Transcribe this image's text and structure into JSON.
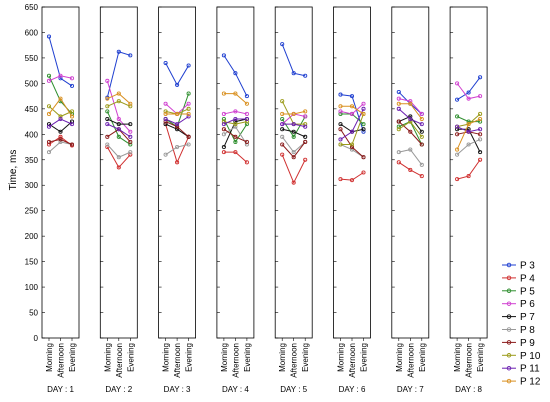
{
  "chart_data": {
    "type": "line",
    "ylabel": "Time, ms",
    "ylim": [
      0,
      650
    ],
    "yticks": [
      0,
      50,
      100,
      150,
      200,
      250,
      300,
      350,
      400,
      450,
      500,
      550,
      600,
      650
    ],
    "x": [
      "Morning",
      "Afternoon",
      "Evening"
    ],
    "panels": [
      "DAY : 1",
      "DAY : 2",
      "DAY : 3",
      "DAY : 4",
      "DAY : 5",
      "DAY : 6",
      "DAY : 7",
      "DAY : 8"
    ],
    "legend_position": "right",
    "grid": false,
    "series": [
      {
        "name": "P 3",
        "color": "#1f3fd0",
        "days": [
          [
            592,
            510,
            495
          ],
          [
            472,
            562,
            555
          ],
          [
            540,
            497,
            535
          ],
          [
            555,
            520,
            475
          ],
          [
            577,
            520,
            515
          ],
          [
            478,
            475,
            405
          ],
          [
            483,
            460,
            440
          ],
          [
            468,
            482,
            512
          ]
        ]
      },
      {
        "name": "P 4",
        "color": "#d03030",
        "days": [
          [
            380,
            395,
            378
          ],
          [
            375,
            335,
            360
          ],
          [
            420,
            345,
            395
          ],
          [
            365,
            365,
            345
          ],
          [
            360,
            305,
            350
          ],
          [
            312,
            310,
            325
          ],
          [
            345,
            330,
            318
          ],
          [
            312,
            318,
            350
          ]
        ]
      },
      {
        "name": "P 5",
        "color": "#2f8f2f",
        "days": [
          [
            515,
            465,
            440
          ],
          [
            445,
            395,
            380
          ],
          [
            430,
            415,
            480
          ],
          [
            430,
            385,
            420
          ],
          [
            430,
            395,
            435
          ],
          [
            440,
            440,
            420
          ],
          [
            415,
            425,
            380
          ],
          [
            435,
            425,
            425
          ]
        ]
      },
      {
        "name": "P 6",
        "color": "#d040d0",
        "days": [
          [
            505,
            515,
            510
          ],
          [
            505,
            430,
            405
          ],
          [
            460,
            440,
            460
          ],
          [
            440,
            445,
            440
          ],
          [
            420,
            440,
            435
          ],
          [
            445,
            440,
            460
          ],
          [
            470,
            465,
            440
          ],
          [
            500,
            470,
            475
          ]
        ]
      },
      {
        "name": "P 7",
        "color": "#111111",
        "days": [
          [
            420,
            405,
            425
          ],
          [
            430,
            420,
            420
          ],
          [
            420,
            410,
            395
          ],
          [
            375,
            425,
            430
          ],
          [
            410,
            405,
            395
          ],
          [
            420,
            405,
            410
          ],
          [
            425,
            435,
            405
          ],
          [
            410,
            410,
            365
          ]
        ]
      },
      {
        "name": "P 8",
        "color": "#999999",
        "days": [
          [
            365,
            385,
            380
          ],
          [
            380,
            355,
            365
          ],
          [
            360,
            375,
            380
          ],
          [
            400,
            415,
            380
          ],
          [
            395,
            365,
            385
          ],
          [
            380,
            370,
            355
          ],
          [
            365,
            370,
            340
          ],
          [
            360,
            380,
            390
          ]
        ]
      },
      {
        "name": "P 9",
        "color": "#8a1a1a",
        "days": [
          [
            385,
            390,
            380
          ],
          [
            395,
            410,
            385
          ],
          [
            425,
            415,
            395
          ],
          [
            410,
            395,
            385
          ],
          [
            380,
            355,
            385
          ],
          [
            410,
            375,
            355
          ],
          [
            425,
            405,
            380
          ],
          [
            400,
            405,
            400
          ]
        ]
      },
      {
        "name": "P 10",
        "color": "#9b9b1a",
        "days": [
          [
            455,
            435,
            445
          ],
          [
            455,
            465,
            455
          ],
          [
            445,
            440,
            450
          ],
          [
            425,
            420,
            425
          ],
          [
            465,
            420,
            420
          ],
          [
            380,
            380,
            440
          ],
          [
            410,
            425,
            395
          ],
          [
            415,
            420,
            440
          ]
        ]
      },
      {
        "name": "P 11",
        "color": "#6b1fb0",
        "days": [
          [
            415,
            430,
            420
          ],
          [
            420,
            410,
            395
          ],
          [
            430,
            420,
            435
          ],
          [
            420,
            430,
            430
          ],
          [
            420,
            420,
            415
          ],
          [
            390,
            405,
            450
          ],
          [
            450,
            430,
            420
          ],
          [
            415,
            405,
            410
          ]
        ]
      },
      {
        "name": "P 12",
        "color": "#d99020",
        "days": [
          [
            440,
            470,
            435
          ],
          [
            470,
            480,
            460
          ],
          [
            440,
            440,
            440
          ],
          [
            480,
            480,
            460
          ],
          [
            440,
            440,
            445
          ],
          [
            455,
            455,
            440
          ],
          [
            460,
            460,
            430
          ],
          [
            370,
            420,
            430
          ]
        ]
      }
    ]
  }
}
